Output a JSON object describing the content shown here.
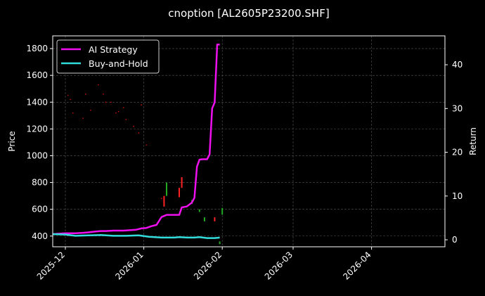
{
  "chart_data": {
    "type": "line",
    "title": "cnoption [AL2605P23200.SHF]",
    "xlabel": "",
    "ylabel": "Price",
    "y2label": "Return",
    "xlim": [
      "2025-11-26",
      "2026-04-30"
    ],
    "ylim": [
      320,
      1895
    ],
    "y2lim": [
      -1.6,
      46.6
    ],
    "x_ticks": [
      "2025-12-01",
      "2026-01-01",
      "2026-02-01",
      "2026-03-01",
      "2026-04-01"
    ],
    "x_tick_labels": [
      "2025-12",
      "2026-01",
      "2026-02",
      "2026-03",
      "2026-04"
    ],
    "y_ticks": [
      400,
      600,
      800,
      1000,
      1200,
      1400,
      1600,
      1800
    ],
    "y2_ticks": [
      0,
      10,
      20,
      30,
      40
    ],
    "grid": true,
    "legend_position": "top-left",
    "series": [
      {
        "name": "AI Strategy",
        "axis": "right",
        "color": "#ee11ee",
        "x": [
          "2025-11-26",
          "2025-12-01",
          "2025-12-05",
          "2025-12-08",
          "2025-12-10",
          "2025-12-13",
          "2025-12-15",
          "2025-12-17",
          "2025-12-20",
          "2025-12-22",
          "2025-12-24",
          "2025-12-27",
          "2025-12-29",
          "2025-12-31",
          "2026-01-02",
          "2026-01-04",
          "2026-01-06",
          "2026-01-08",
          "2026-01-10",
          "2026-01-12",
          "2026-01-14",
          "2026-01-15",
          "2026-01-16",
          "2026-01-18",
          "2026-01-20",
          "2026-01-21",
          "2026-01-22",
          "2026-01-23",
          "2026-01-24",
          "2026-01-26",
          "2026-01-27",
          "2026-01-28",
          "2026-01-29",
          "2026-01-30",
          "2026-01-31"
        ],
        "values": [
          1.3,
          1.5,
          1.5,
          1.6,
          1.7,
          1.9,
          2.0,
          2.0,
          2.1,
          2.1,
          2.1,
          2.2,
          2.3,
          2.6,
          2.7,
          3.1,
          3.4,
          5.2,
          5.7,
          5.7,
          5.7,
          5.7,
          7.4,
          7.6,
          8.5,
          9.6,
          16.7,
          18.3,
          18.4,
          18.4,
          19.5,
          30.0,
          31.4,
          44.6,
          44.6
        ]
      },
      {
        "name": "Buy-and-Hold",
        "axis": "right",
        "color": "#33dddd",
        "x": [
          "2025-11-26",
          "2025-12-01",
          "2025-12-05",
          "2025-12-10",
          "2025-12-15",
          "2025-12-20",
          "2025-12-25",
          "2025-12-30",
          "2026-01-03",
          "2026-01-08",
          "2026-01-13",
          "2026-01-15",
          "2026-01-18",
          "2026-01-21",
          "2026-01-23",
          "2026-01-26",
          "2026-01-29",
          "2026-01-31"
        ],
        "values": [
          1.3,
          1.2,
          0.9,
          1.0,
          1.1,
          0.9,
          0.9,
          1.0,
          0.7,
          0.5,
          0.5,
          0.6,
          0.5,
          0.5,
          0.6,
          0.4,
          0.4,
          0.5
        ]
      }
    ],
    "candles": [
      {
        "x": "2026-01-09",
        "open": 700,
        "close": 620,
        "color": "#ff2222"
      },
      {
        "x": "2026-01-10",
        "open": 700,
        "close": 800,
        "color": "#22aa22"
      },
      {
        "x": "2026-01-15",
        "open": 690,
        "close": 760,
        "color": "#ff2222"
      },
      {
        "x": "2026-01-16",
        "open": 760,
        "close": 840,
        "color": "#ff2222"
      },
      {
        "x": "2026-01-20",
        "open": 640,
        "close": 670,
        "color": "#22aa22"
      },
      {
        "x": "2026-01-23",
        "open": 600,
        "close": 580,
        "color": "#22aa22"
      },
      {
        "x": "2026-01-25",
        "open": 510,
        "close": 540,
        "color": "#22aa22"
      },
      {
        "x": "2026-01-29",
        "open": 510,
        "close": 540,
        "color": "#ff2222"
      },
      {
        "x": "2026-01-31",
        "open": 360,
        "close": 340,
        "color": "#22aa22"
      },
      {
        "x": "2026-02-01",
        "open": 560,
        "close": 610,
        "color": "#22aa22"
      }
    ],
    "scatter_points": [
      {
        "x": "2025-12-02",
        "y": 1450
      },
      {
        "x": "2025-12-03",
        "y": 1420
      },
      {
        "x": "2025-12-04",
        "y": 1320
      },
      {
        "x": "2025-12-08",
        "y": 1280
      },
      {
        "x": "2025-12-09",
        "y": 1460
      },
      {
        "x": "2025-12-11",
        "y": 1340
      },
      {
        "x": "2025-12-14",
        "y": 1530
      },
      {
        "x": "2025-12-16",
        "y": 1460
      },
      {
        "x": "2025-12-17",
        "y": 1400
      },
      {
        "x": "2025-12-19",
        "y": 1400
      },
      {
        "x": "2025-12-21",
        "y": 1320
      },
      {
        "x": "2025-12-22",
        "y": 1330
      },
      {
        "x": "2025-12-24",
        "y": 1360
      },
      {
        "x": "2025-12-25",
        "y": 1270
      },
      {
        "x": "2025-12-28",
        "y": 1220
      },
      {
        "x": "2025-12-30",
        "y": 1170
      },
      {
        "x": "2025-12-31",
        "y": 1380
      },
      {
        "x": "2026-01-02",
        "y": 1080
      },
      {
        "x": "2026-01-08",
        "y": 680
      }
    ]
  }
}
